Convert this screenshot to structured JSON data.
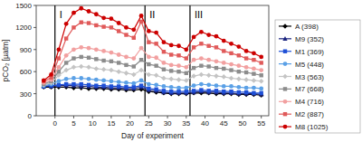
{
  "chart_data": {
    "type": "line",
    "x_label": "Day of experiment",
    "y_label": "pCO₂ [µatm]",
    "x": [
      -3,
      -1,
      1,
      3,
      5,
      7,
      9,
      11,
      13,
      15,
      17,
      19,
      21,
      23,
      25,
      27,
      29,
      31,
      33,
      35,
      37,
      39,
      41,
      43,
      45,
      47,
      49,
      51,
      53,
      55
    ],
    "xlim": [
      -5,
      57
    ],
    "xticks": [
      0,
      5,
      10,
      15,
      20,
      25,
      30,
      35,
      40,
      45,
      50,
      55
    ],
    "ylim": [
      0,
      1500
    ],
    "yticks": [
      0,
      300,
      600,
      900,
      1200,
      1500
    ],
    "grid": false,
    "legend": "right",
    "annotations": [
      {
        "x": 0,
        "text": "I"
      },
      {
        "x": 24,
        "text": "II"
      },
      {
        "x": 36,
        "text": "III"
      }
    ],
    "series": [
      {
        "name": "A (398)",
        "color": "#000000",
        "marker": "diamond",
        "values": [
          390,
          390,
          390,
          390,
          380,
          380,
          370,
          370,
          370,
          360,
          360,
          350,
          350,
          360,
          330,
          320,
          310,
          300,
          300,
          300,
          310,
          310,
          310,
          300,
          300,
          300,
          290,
          290,
          290,
          280
        ]
      },
      {
        "name": "M9 (352)",
        "color": "#1a237e",
        "marker": "triangle",
        "values": [
          400,
          400,
          410,
          410,
          410,
          400,
          400,
          390,
          390,
          380,
          380,
          370,
          370,
          390,
          350,
          340,
          320,
          310,
          310,
          310,
          320,
          330,
          320,
          320,
          310,
          310,
          300,
          300,
          300,
          290
        ]
      },
      {
        "name": "M1 (369)",
        "color": "#1e4fd6",
        "marker": "square",
        "values": [
          400,
          410,
          420,
          430,
          430,
          430,
          420,
          410,
          410,
          400,
          400,
          390,
          390,
          410,
          370,
          360,
          340,
          330,
          330,
          330,
          340,
          350,
          340,
          340,
          330,
          330,
          320,
          320,
          310,
          310
        ]
      },
      {
        "name": "M5 (448)",
        "color": "#5aa0e6",
        "marker": "circle",
        "values": [
          410,
          430,
          470,
          500,
          510,
          510,
          500,
          490,
          480,
          470,
          460,
          450,
          440,
          480,
          430,
          420,
          400,
          390,
          380,
          380,
          410,
          430,
          420,
          410,
          400,
          400,
          390,
          380,
          380,
          370
        ]
      },
      {
        "name": "M3 (563)",
        "color": "#c4c4c4",
        "marker": "diamond",
        "values": [
          420,
          450,
          550,
          620,
          660,
          670,
          660,
          640,
          630,
          620,
          600,
          580,
          560,
          620,
          560,
          550,
          510,
          500,
          490,
          480,
          540,
          560,
          550,
          540,
          530,
          510,
          500,
          490,
          480,
          470
        ]
      },
      {
        "name": "M7 (668)",
        "color": "#8c8c8c",
        "marker": "square",
        "values": [
          430,
          470,
          600,
          720,
          780,
          800,
          790,
          770,
          750,
          740,
          720,
          690,
          670,
          760,
          700,
          680,
          630,
          610,
          600,
          580,
          650,
          680,
          670,
          650,
          640,
          620,
          600,
          590,
          570,
          550
        ]
      },
      {
        "name": "M4 (716)",
        "color": "#f2a0a0",
        "marker": "circle",
        "values": [
          450,
          490,
          660,
          820,
          900,
          930,
          920,
          900,
          880,
          860,
          830,
          800,
          780,
          920,
          800,
          790,
          720,
          690,
          680,
          660,
          760,
          780,
          760,
          740,
          720,
          700,
          680,
          660,
          640,
          620
        ]
      },
      {
        "name": "M2 (887)",
        "color": "#e05a5a",
        "marker": "square",
        "values": [
          470,
          520,
          780,
          1050,
          1200,
          1270,
          1260,
          1230,
          1210,
          1200,
          1150,
          1100,
          1060,
          1280,
          1000,
          980,
          870,
          830,
          820,
          780,
          930,
          980,
          950,
          930,
          880,
          850,
          820,
          780,
          760,
          720
        ]
      },
      {
        "name": "M8 (1025)",
        "color": "#cc0000",
        "marker": "circle",
        "values": [
          480,
          560,
          900,
          1250,
          1400,
          1460,
          1420,
          1380,
          1330,
          1320,
          1260,
          1200,
          1170,
          1360,
          1150,
          1130,
          1000,
          960,
          950,
          900,
          1070,
          1140,
          1100,
          1080,
          1020,
          980,
          940,
          880,
          850,
          800
        ]
      }
    ]
  }
}
